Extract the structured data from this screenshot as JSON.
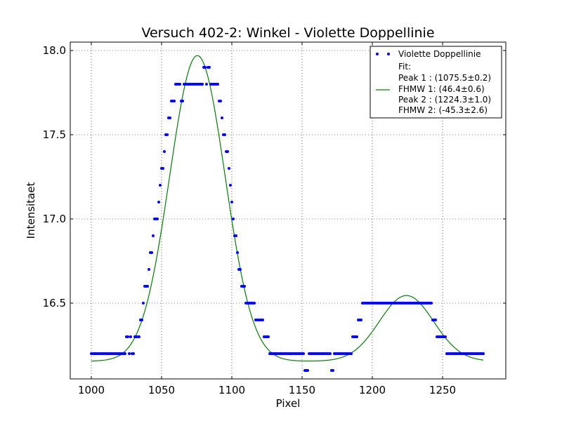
{
  "chart_data": {
    "type": "scatter",
    "title": "Versuch 402-2: Winkel - Violette Doppellinie",
    "xlabel": "Pixel",
    "ylabel": "Intensitaet",
    "xlim": [
      985,
      1295
    ],
    "ylim": [
      16.05,
      18.05
    ],
    "xticks": [
      1000,
      1050,
      1100,
      1150,
      1200,
      1250
    ],
    "yticks": [
      16.5,
      17.0,
      17.5,
      18.0
    ],
    "xtick_labels": [
      "1000",
      "1050",
      "1100",
      "1150",
      "1200",
      "1250"
    ],
    "ytick_labels": [
      "16.5",
      "17.0",
      "17.5",
      "18.0"
    ],
    "grid": true,
    "legend_position": "top-right",
    "colors": {
      "data": "#0000ff",
      "fit": "#008000"
    },
    "series": [
      {
        "name": "Violette Doppellinie",
        "style": "dots",
        "points": [
          [
            1000,
            16.2
          ],
          [
            1001,
            16.2
          ],
          [
            1002,
            16.2
          ],
          [
            1003,
            16.2
          ],
          [
            1004,
            16.2
          ],
          [
            1005,
            16.2
          ],
          [
            1006,
            16.2
          ],
          [
            1007,
            16.2
          ],
          [
            1008,
            16.2
          ],
          [
            1009,
            16.2
          ],
          [
            1010,
            16.2
          ],
          [
            1011,
            16.2
          ],
          [
            1012,
            16.2
          ],
          [
            1013,
            16.2
          ],
          [
            1014,
            16.2
          ],
          [
            1015,
            16.2
          ],
          [
            1016,
            16.2
          ],
          [
            1017,
            16.2
          ],
          [
            1018,
            16.2
          ],
          [
            1019,
            16.2
          ],
          [
            1020,
            16.2
          ],
          [
            1021,
            16.2
          ],
          [
            1022,
            16.2
          ],
          [
            1023,
            16.2
          ],
          [
            1024,
            16.2
          ],
          [
            1025,
            16.3
          ],
          [
            1026,
            16.3
          ],
          [
            1027,
            16.2
          ],
          [
            1028,
            16.3
          ],
          [
            1029,
            16.2
          ],
          [
            1030,
            16.2
          ],
          [
            1031,
            16.3
          ],
          [
            1032,
            16.3
          ],
          [
            1033,
            16.3
          ],
          [
            1034,
            16.3
          ],
          [
            1035,
            16.4
          ],
          [
            1036,
            16.4
          ],
          [
            1037,
            16.5
          ],
          [
            1038,
            16.6
          ],
          [
            1039,
            16.6
          ],
          [
            1040,
            16.6
          ],
          [
            1041,
            16.7
          ],
          [
            1042,
            16.8
          ],
          [
            1043,
            16.8
          ],
          [
            1044,
            16.9
          ],
          [
            1045,
            17.0
          ],
          [
            1046,
            17.0
          ],
          [
            1047,
            17.0
          ],
          [
            1048,
            17.1
          ],
          [
            1049,
            17.2
          ],
          [
            1050,
            17.3
          ],
          [
            1051,
            17.3
          ],
          [
            1052,
            17.4
          ],
          [
            1053,
            17.5
          ],
          [
            1054,
            17.5
          ],
          [
            1055,
            17.6
          ],
          [
            1056,
            17.6
          ],
          [
            1057,
            17.7
          ],
          [
            1058,
            17.7
          ],
          [
            1059,
            17.7
          ],
          [
            1060,
            17.8
          ],
          [
            1061,
            17.8
          ],
          [
            1062,
            17.8
          ],
          [
            1063,
            17.8
          ],
          [
            1064,
            17.7
          ],
          [
            1065,
            17.7
          ],
          [
            1066,
            17.8
          ],
          [
            1067,
            17.8
          ],
          [
            1068,
            17.8
          ],
          [
            1069,
            17.8
          ],
          [
            1070,
            17.8
          ],
          [
            1071,
            17.8
          ],
          [
            1072,
            17.8
          ],
          [
            1073,
            17.8
          ],
          [
            1074,
            17.8
          ],
          [
            1075,
            17.8
          ],
          [
            1076,
            17.8
          ],
          [
            1077,
            17.8
          ],
          [
            1078,
            17.8
          ],
          [
            1079,
            17.8
          ],
          [
            1080,
            17.9
          ],
          [
            1081,
            17.9
          ],
          [
            1082,
            17.8
          ],
          [
            1083,
            17.9
          ],
          [
            1084,
            17.9
          ],
          [
            1085,
            17.8
          ],
          [
            1086,
            17.8
          ],
          [
            1087,
            17.8
          ],
          [
            1088,
            17.8
          ],
          [
            1089,
            17.8
          ],
          [
            1090,
            17.8
          ],
          [
            1091,
            17.7
          ],
          [
            1092,
            17.7
          ],
          [
            1093,
            17.6
          ],
          [
            1094,
            17.5
          ],
          [
            1095,
            17.5
          ],
          [
            1096,
            17.4
          ],
          [
            1097,
            17.4
          ],
          [
            1098,
            17.3
          ],
          [
            1099,
            17.2
          ],
          [
            1100,
            17.1
          ],
          [
            1101,
            17.0
          ],
          [
            1102,
            16.9
          ],
          [
            1103,
            16.9
          ],
          [
            1104,
            16.8
          ],
          [
            1105,
            16.7
          ],
          [
            1106,
            16.7
          ],
          [
            1107,
            16.6
          ],
          [
            1108,
            16.6
          ],
          [
            1109,
            16.6
          ],
          [
            1110,
            16.5
          ],
          [
            1111,
            16.5
          ],
          [
            1112,
            16.5
          ],
          [
            1113,
            16.5
          ],
          [
            1114,
            16.5
          ],
          [
            1115,
            16.5
          ],
          [
            1116,
            16.5
          ],
          [
            1117,
            16.4
          ],
          [
            1118,
            16.4
          ],
          [
            1119,
            16.4
          ],
          [
            1120,
            16.4
          ],
          [
            1121,
            16.4
          ],
          [
            1122,
            16.4
          ],
          [
            1123,
            16.3
          ],
          [
            1124,
            16.3
          ],
          [
            1125,
            16.3
          ],
          [
            1126,
            16.3
          ],
          [
            1127,
            16.2
          ],
          [
            1128,
            16.2
          ],
          [
            1129,
            16.2
          ],
          [
            1130,
            16.2
          ],
          [
            1131,
            16.2
          ],
          [
            1132,
            16.2
          ],
          [
            1133,
            16.2
          ],
          [
            1134,
            16.2
          ],
          [
            1135,
            16.2
          ],
          [
            1136,
            16.2
          ],
          [
            1137,
            16.2
          ],
          [
            1138,
            16.2
          ],
          [
            1139,
            16.2
          ],
          [
            1140,
            16.2
          ],
          [
            1141,
            16.2
          ],
          [
            1142,
            16.2
          ],
          [
            1143,
            16.2
          ],
          [
            1144,
            16.2
          ],
          [
            1145,
            16.2
          ],
          [
            1146,
            16.2
          ],
          [
            1147,
            16.2
          ],
          [
            1148,
            16.2
          ],
          [
            1149,
            16.2
          ],
          [
            1150,
            16.2
          ],
          [
            1151,
            16.2
          ],
          [
            1152,
            16.1
          ],
          [
            1153,
            16.1
          ],
          [
            1154,
            16.1
          ],
          [
            1155,
            16.2
          ],
          [
            1156,
            16.2
          ],
          [
            1157,
            16.2
          ],
          [
            1158,
            16.2
          ],
          [
            1159,
            16.2
          ],
          [
            1160,
            16.2
          ],
          [
            1161,
            16.2
          ],
          [
            1162,
            16.2
          ],
          [
            1163,
            16.2
          ],
          [
            1164,
            16.2
          ],
          [
            1165,
            16.2
          ],
          [
            1166,
            16.2
          ],
          [
            1167,
            16.2
          ],
          [
            1168,
            16.2
          ],
          [
            1169,
            16.2
          ],
          [
            1170,
            16.2
          ],
          [
            1171,
            16.1
          ],
          [
            1172,
            16.1
          ],
          [
            1173,
            16.2
          ],
          [
            1174,
            16.2
          ],
          [
            1175,
            16.2
          ],
          [
            1176,
            16.2
          ],
          [
            1177,
            16.2
          ],
          [
            1178,
            16.2
          ],
          [
            1179,
            16.2
          ],
          [
            1180,
            16.2
          ],
          [
            1181,
            16.2
          ],
          [
            1182,
            16.2
          ],
          [
            1183,
            16.2
          ],
          [
            1184,
            16.2
          ],
          [
            1185,
            16.2
          ],
          [
            1186,
            16.3
          ],
          [
            1187,
            16.3
          ],
          [
            1188,
            16.3
          ],
          [
            1189,
            16.3
          ],
          [
            1190,
            16.4
          ],
          [
            1191,
            16.4
          ],
          [
            1192,
            16.4
          ],
          [
            1193,
            16.5
          ],
          [
            1194,
            16.5
          ],
          [
            1195,
            16.5
          ],
          [
            1196,
            16.5
          ],
          [
            1197,
            16.5
          ],
          [
            1198,
            16.5
          ],
          [
            1199,
            16.5
          ],
          [
            1200,
            16.5
          ],
          [
            1201,
            16.5
          ],
          [
            1202,
            16.5
          ],
          [
            1203,
            16.5
          ],
          [
            1204,
            16.5
          ],
          [
            1205,
            16.5
          ],
          [
            1206,
            16.5
          ],
          [
            1207,
            16.5
          ],
          [
            1208,
            16.5
          ],
          [
            1209,
            16.5
          ],
          [
            1210,
            16.5
          ],
          [
            1211,
            16.5
          ],
          [
            1212,
            16.5
          ],
          [
            1213,
            16.5
          ],
          [
            1214,
            16.5
          ],
          [
            1215,
            16.5
          ],
          [
            1216,
            16.5
          ],
          [
            1217,
            16.5
          ],
          [
            1218,
            16.5
          ],
          [
            1219,
            16.5
          ],
          [
            1220,
            16.5
          ],
          [
            1221,
            16.5
          ],
          [
            1222,
            16.5
          ],
          [
            1223,
            16.5
          ],
          [
            1224,
            16.5
          ],
          [
            1225,
            16.5
          ],
          [
            1226,
            16.5
          ],
          [
            1227,
            16.5
          ],
          [
            1228,
            16.5
          ],
          [
            1229,
            16.5
          ],
          [
            1230,
            16.5
          ],
          [
            1231,
            16.5
          ],
          [
            1232,
            16.5
          ],
          [
            1233,
            16.5
          ],
          [
            1234,
            16.5
          ],
          [
            1235,
            16.5
          ],
          [
            1236,
            16.5
          ],
          [
            1237,
            16.5
          ],
          [
            1238,
            16.5
          ],
          [
            1239,
            16.5
          ],
          [
            1240,
            16.5
          ],
          [
            1241,
            16.5
          ],
          [
            1242,
            16.5
          ],
          [
            1243,
            16.4
          ],
          [
            1244,
            16.4
          ],
          [
            1245,
            16.4
          ],
          [
            1246,
            16.3
          ],
          [
            1247,
            16.3
          ],
          [
            1248,
            16.3
          ],
          [
            1249,
            16.3
          ],
          [
            1250,
            16.3
          ],
          [
            1251,
            16.3
          ],
          [
            1252,
            16.3
          ],
          [
            1253,
            16.2
          ],
          [
            1254,
            16.2
          ],
          [
            1255,
            16.2
          ],
          [
            1256,
            16.2
          ],
          [
            1257,
            16.2
          ],
          [
            1258,
            16.2
          ],
          [
            1259,
            16.2
          ],
          [
            1260,
            16.2
          ],
          [
            1261,
            16.2
          ],
          [
            1262,
            16.2
          ],
          [
            1263,
            16.2
          ],
          [
            1264,
            16.2
          ],
          [
            1265,
            16.2
          ],
          [
            1266,
            16.2
          ],
          [
            1267,
            16.2
          ],
          [
            1268,
            16.2
          ],
          [
            1269,
            16.2
          ],
          [
            1270,
            16.2
          ],
          [
            1271,
            16.2
          ],
          [
            1272,
            16.2
          ],
          [
            1273,
            16.2
          ],
          [
            1274,
            16.2
          ],
          [
            1275,
            16.2
          ],
          [
            1276,
            16.2
          ],
          [
            1277,
            16.2
          ],
          [
            1278,
            16.2
          ],
          [
            1279,
            16.2
          ]
        ]
      },
      {
        "name": "Fit:",
        "style": "line",
        "x_range": [
          1000,
          1279
        ],
        "model": {
          "baseline": 16.155,
          "peaks": [
            {
              "amplitude": 1.815,
              "center": 1075.5,
              "sigma": 19.7
            },
            {
              "amplitude": 0.39,
              "center": 1224.3,
              "sigma": 19.3
            }
          ]
        }
      }
    ],
    "legend": {
      "entries": [
        {
          "label": "Violette Doppellinie",
          "marker": "dots"
        },
        {
          "label": "Fit:",
          "marker": "line",
          "lines": [
            "Fit:",
            "Peak 1  : (1075.5±0.2)",
            "FHMW 1: (46.4±0.6)",
            "Peak 2  : (1224.3±1.0)",
            "FHMW 2: (-45.3±2.6)"
          ]
        }
      ]
    }
  }
}
